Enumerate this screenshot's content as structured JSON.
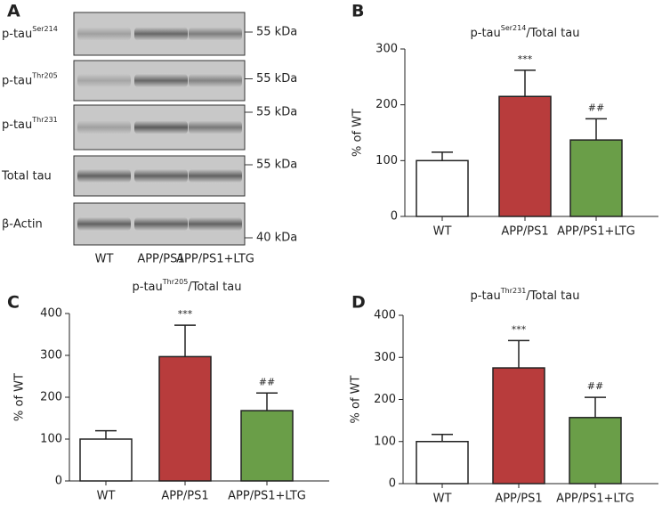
{
  "blot": {
    "panel_label": "A",
    "rows": [
      {
        "main": "p-tau",
        "sup": "Ser214",
        "marker": "55 kDa"
      },
      {
        "main": "p-tau",
        "sup": "Thr205",
        "marker": "55 kDa"
      },
      {
        "main": "p-tau",
        "sup": "Thr231",
        "marker": "55 kDa"
      },
      {
        "main": "Total tau",
        "marker": "55 kDa"
      },
      {
        "main": "β-Actin",
        "marker": "40 kDa"
      }
    ],
    "lanes": [
      "WT",
      "APP/PS1",
      "APP/PS1+LTG"
    ]
  },
  "chart_data": [
    {
      "type": "bar",
      "panel_label": "B",
      "title": {
        "main": "p-tau",
        "sup": "Ser214",
        "rest": "/Total tau"
      },
      "y_label": "% of WT",
      "categories": [
        "WT",
        "APP/PS1",
        "APP/PS1+LTG"
      ],
      "values": [
        100,
        215,
        137
      ],
      "errors": [
        15,
        47,
        38
      ],
      "annotations": [
        null,
        "***",
        "##"
      ],
      "colors": [
        "#ffffff",
        "#b83c3c",
        "#6a9e48"
      ],
      "ylim": [
        0,
        300
      ],
      "yticks": [
        0,
        100,
        200,
        300
      ]
    },
    {
      "type": "bar",
      "panel_label": "C",
      "title": {
        "main": "p-tau",
        "sup": "Thr205",
        "rest": "/Total tau"
      },
      "y_label": "% of WT",
      "categories": [
        "WT",
        "APP/PS1",
        "APP/PS1+LTG"
      ],
      "values": [
        100,
        297,
        168
      ],
      "errors": [
        20,
        75,
        42
      ],
      "annotations": [
        null,
        "***",
        "##"
      ],
      "colors": [
        "#ffffff",
        "#b83c3c",
        "#6a9e48"
      ],
      "ylim": [
        0,
        400
      ],
      "yticks": [
        0,
        100,
        200,
        300,
        400
      ]
    },
    {
      "type": "bar",
      "panel_label": "D",
      "title": {
        "main": "p-tau",
        "sup": "Thr231",
        "rest": "/Total tau"
      },
      "y_label": "% of WT",
      "categories": [
        "WT",
        "APP/PS1",
        "APP/PS1+LTG"
      ],
      "values": [
        100,
        275,
        157
      ],
      "errors": [
        17,
        65,
        48
      ],
      "annotations": [
        null,
        "***",
        "##"
      ],
      "colors": [
        "#ffffff",
        "#b83c3c",
        "#6a9e48"
      ],
      "ylim": [
        0,
        400
      ],
      "yticks": [
        0,
        100,
        200,
        300,
        400
      ]
    }
  ]
}
